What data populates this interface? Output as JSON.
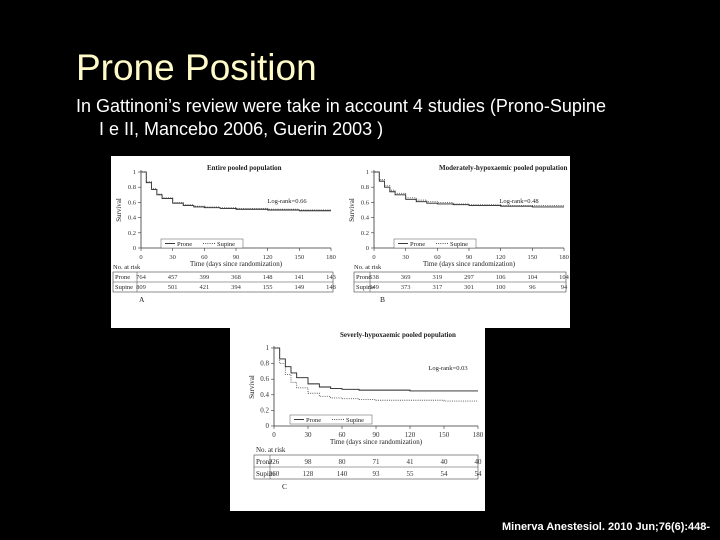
{
  "slide": {
    "title": "Prone Position",
    "subtitle_line1": "In Gattinoni’s review were take in  account 4 studies  (Prono-Supine",
    "subtitle_line2": "I e II, Mancebo 2006, Guerin 2003 )",
    "citation": "Minerva Anestesiol. 2010 Jun;76(6):448-"
  },
  "chart_data": [
    {
      "type": "line",
      "panel_label": "A",
      "title": "Entire pooled population",
      "xlabel": "Time (days since randomization)",
      "ylabel": "Survival",
      "x_ticks": [
        "0",
        "30",
        "60",
        "90",
        "120",
        "150",
        "180"
      ],
      "y_ticks": [
        "0",
        "0.2",
        "0.4",
        "0.6",
        "0.8",
        "1"
      ],
      "xlim": [
        0,
        180
      ],
      "ylim": [
        0,
        1
      ],
      "annotation": "Log-rank=0.66",
      "legend": {
        "position": "bottom-center",
        "items": [
          "Prone",
          "Supine"
        ]
      },
      "series": [
        {
          "name": "Prone",
          "style": "solid",
          "x": [
            0,
            5,
            10,
            15,
            20,
            30,
            40,
            50,
            60,
            75,
            90,
            120,
            150,
            180
          ],
          "y": [
            1,
            0.86,
            0.77,
            0.7,
            0.65,
            0.59,
            0.56,
            0.54,
            0.53,
            0.52,
            0.51,
            0.5,
            0.49,
            0.49
          ]
        },
        {
          "name": "Supine",
          "style": "dotted",
          "x": [
            0,
            5,
            10,
            15,
            20,
            30,
            40,
            50,
            60,
            75,
            90,
            120,
            150,
            180
          ],
          "y": [
            1,
            0.87,
            0.78,
            0.71,
            0.66,
            0.6,
            0.57,
            0.55,
            0.54,
            0.53,
            0.52,
            0.51,
            0.5,
            0.5
          ]
        }
      ],
      "risk_table": {
        "header": "No. at risk",
        "rows": [
          {
            "label": "Prone",
            "values": [
              "764",
              "457",
              "399",
              "368",
              "148",
              "141",
              "143"
            ]
          },
          {
            "label": "Supine",
            "values": [
              "809",
              "501",
              "421",
              "394",
              "155",
              "149",
              "148"
            ]
          }
        ]
      }
    },
    {
      "type": "line",
      "panel_label": "B",
      "title": "Moderately-hypoxaemic pooled population",
      "xlabel": "Time (days since randomization)",
      "ylabel": "Survival",
      "x_ticks": [
        "0",
        "30",
        "60",
        "90",
        "120",
        "150",
        "180"
      ],
      "y_ticks": [
        "0",
        "0.2",
        "0.4",
        "0.6",
        "0.8",
        "1"
      ],
      "xlim": [
        0,
        180
      ],
      "ylim": [
        0,
        1
      ],
      "annotation": "Log-rank=0.48",
      "legend": {
        "position": "bottom-center",
        "items": [
          "Prone",
          "Supine"
        ]
      },
      "series": [
        {
          "name": "Prone",
          "style": "solid",
          "x": [
            0,
            5,
            10,
            15,
            20,
            30,
            40,
            50,
            60,
            75,
            90,
            120,
            150,
            180
          ],
          "y": [
            1,
            0.88,
            0.8,
            0.74,
            0.7,
            0.64,
            0.61,
            0.59,
            0.58,
            0.57,
            0.56,
            0.55,
            0.54,
            0.54
          ]
        },
        {
          "name": "Supine",
          "style": "dotted",
          "x": [
            0,
            5,
            10,
            15,
            20,
            30,
            40,
            50,
            60,
            75,
            90,
            120,
            150,
            180
          ],
          "y": [
            1,
            0.9,
            0.82,
            0.76,
            0.72,
            0.66,
            0.63,
            0.61,
            0.6,
            0.58,
            0.57,
            0.56,
            0.56,
            0.55
          ]
        }
      ],
      "risk_table": {
        "header": "No. at risk",
        "rows": [
          {
            "label": "Prone",
            "values": [
              "538",
              "369",
              "319",
              "297",
              "106",
              "104",
              "104"
            ]
          },
          {
            "label": "Supine",
            "values": [
              "549",
              "373",
              "317",
              "301",
              "100",
              "96",
              "94"
            ]
          }
        ]
      }
    },
    {
      "type": "line",
      "panel_label": "C",
      "title": "Severly-hypoxaemic pooled population",
      "xlabel": "Time (days since randomization)",
      "ylabel": "Survival",
      "x_ticks": [
        "0",
        "30",
        "60",
        "90",
        "120",
        "150",
        "180"
      ],
      "y_ticks": [
        "0",
        "0.2",
        "0.4",
        "0.6",
        "0.8",
        "1"
      ],
      "xlim": [
        0,
        180
      ],
      "ylim": [
        0,
        1
      ],
      "annotation": "Log-rank=0.03",
      "legend": {
        "position": "bottom-center",
        "items": [
          "Prone",
          "Supine"
        ]
      },
      "series": [
        {
          "name": "Prone",
          "style": "solid",
          "x": [
            0,
            5,
            10,
            15,
            20,
            30,
            40,
            50,
            60,
            75,
            90,
            120,
            150,
            180
          ],
          "y": [
            1,
            0.86,
            0.76,
            0.68,
            0.62,
            0.54,
            0.5,
            0.48,
            0.47,
            0.46,
            0.46,
            0.45,
            0.45,
            0.45
          ]
        },
        {
          "name": "Supine",
          "style": "dotted",
          "x": [
            0,
            5,
            10,
            15,
            20,
            30,
            40,
            50,
            60,
            75,
            90,
            120,
            150,
            180
          ],
          "y": [
            1,
            0.8,
            0.66,
            0.56,
            0.49,
            0.42,
            0.38,
            0.36,
            0.35,
            0.34,
            0.33,
            0.33,
            0.32,
            0.32
          ]
        }
      ],
      "risk_table": {
        "header": "No. at risk",
        "rows": [
          {
            "label": "Prone",
            "values": [
              "226",
              "98",
              "80",
              "71",
              "41",
              "40",
              "40"
            ]
          },
          {
            "label": "Supine",
            "values": [
              "260",
              "128",
              "140",
              "93",
              "55",
              "54",
              "54"
            ]
          }
        ]
      }
    }
  ]
}
